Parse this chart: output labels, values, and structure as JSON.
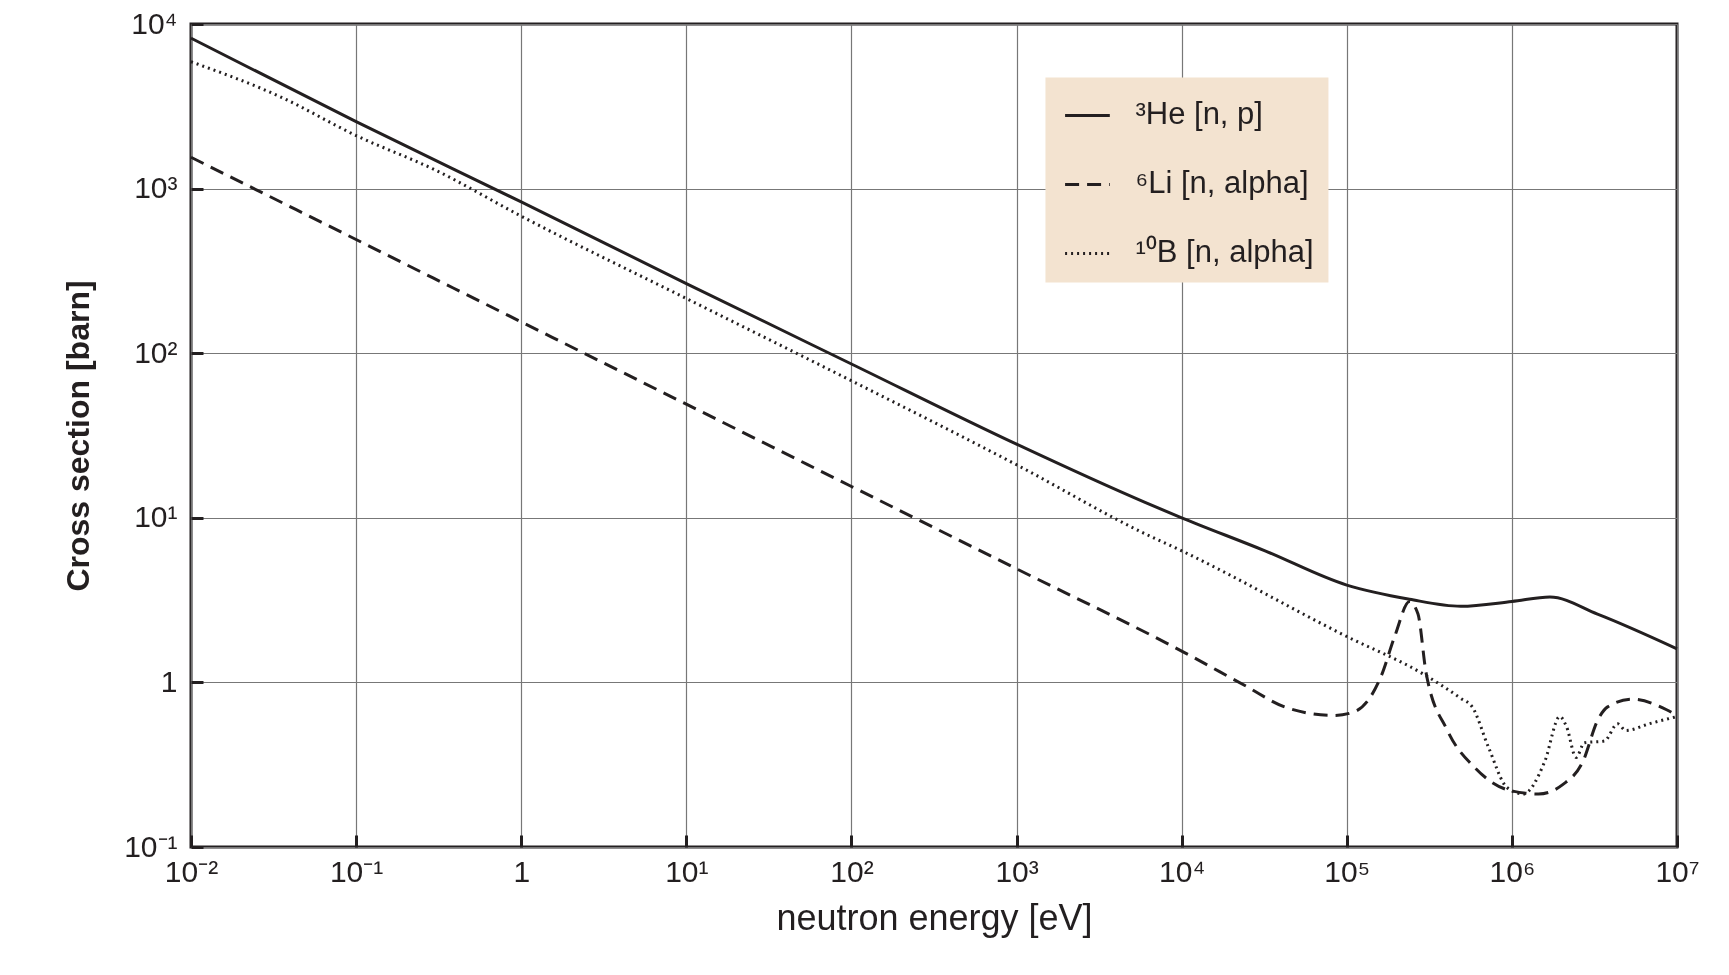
{
  "chart_data": {
    "type": "line",
    "xlabel": "neutron energy [eV]",
    "ylabel": "Cross section [barn]",
    "log": "xy",
    "grid": true,
    "legend": "top right",
    "xlim": [
      0.01,
      10000000
    ],
    "ylim": [
      0.1,
      10000
    ],
    "xticks": [
      {
        "value": 0.01,
        "label": "10⁻²"
      },
      {
        "value": 0.1,
        "label": "10⁻¹"
      },
      1,
      {
        "value": 10,
        "label": "10¹"
      },
      {
        "value": 100,
        "label": "10²"
      },
      {
        "value": 1000,
        "label": "10³"
      },
      {
        "value": 10000,
        "label": "10⁴"
      },
      {
        "value": 100000,
        "label": "10⁵"
      },
      {
        "value": 1000000,
        "label": "10⁶"
      },
      {
        "value": 10000000,
        "label": "10⁷"
      }
    ],
    "yticks": [
      {
        "value": 0.1,
        "label": "10⁻¹"
      },
      1,
      {
        "value": 10,
        "label": "10¹"
      },
      {
        "value": 100,
        "label": "10²"
      },
      {
        "value": 1000,
        "label": "10³"
      },
      {
        "value": 10000,
        "label": "10⁴"
      }
    ],
    "series": [
      {
        "name": "³He [n, p]",
        "color": "#231f20",
        "line_style": "solid",
        "x": [
          0.01,
          0.1,
          1,
          10,
          100,
          1000,
          6000,
          10000,
          32000,
          100000,
          240000,
          490000,
          1000000,
          1700000,
          3300000,
          10000000
        ],
        "values": [
          8200,
          2550,
          830,
          265,
          86,
          28,
          12.4,
          10,
          6.3,
          3.9,
          3.2,
          2.9,
          3.1,
          3.3,
          2.6,
          1.6
        ]
      },
      {
        "name": "⁶Li [n, alpha]",
        "color": "#231f20",
        "line_style": "dashed",
        "x": [
          0.01,
          1,
          10,
          100,
          1000,
          10000,
          24500,
          42000,
          83000,
          110000,
          162000,
          195000,
          240000,
          270000,
          302000,
          407000,
          603000,
          980000,
          1450000,
          2040000,
          2690000,
          3310000,
          3800000,
          5370000,
          8710000,
          10000000
        ],
        "values": [
          1550,
          155,
          49,
          15.5,
          4.9,
          1.55,
          0.95,
          0.71,
          0.63,
          0.66,
          1.1,
          1.9,
          3.1,
          2.6,
          1.15,
          0.51,
          0.3,
          0.22,
          0.21,
          0.24,
          0.33,
          0.59,
          0.71,
          0.79,
          0.68,
          0.63
        ]
      },
      {
        "name": "¹⁰B [n, alpha]",
        "color": "#231f20",
        "line_style": "dotted",
        "x": [
          0.01,
          0.035,
          0.1,
          0.3,
          1,
          10,
          100,
          1000,
          6000,
          10000,
          100000,
          288000,
          490000,
          575000,
          724000,
          933000,
          1170000,
          1580000,
          1950000,
          2140000,
          2450000,
          2750000,
          3630000,
          4370000,
          4900000,
          6760000,
          10000000
        ],
        "values": [
          5900,
          3600,
          2100,
          1300,
          680,
          215,
          68,
          21,
          8,
          6.3,
          1.9,
          1.13,
          0.8,
          0.71,
          0.4,
          0.23,
          0.21,
          0.33,
          0.62,
          0.54,
          0.35,
          0.43,
          0.44,
          0.56,
          0.51,
          0.56,
          0.62
        ]
      }
    ]
  }
}
